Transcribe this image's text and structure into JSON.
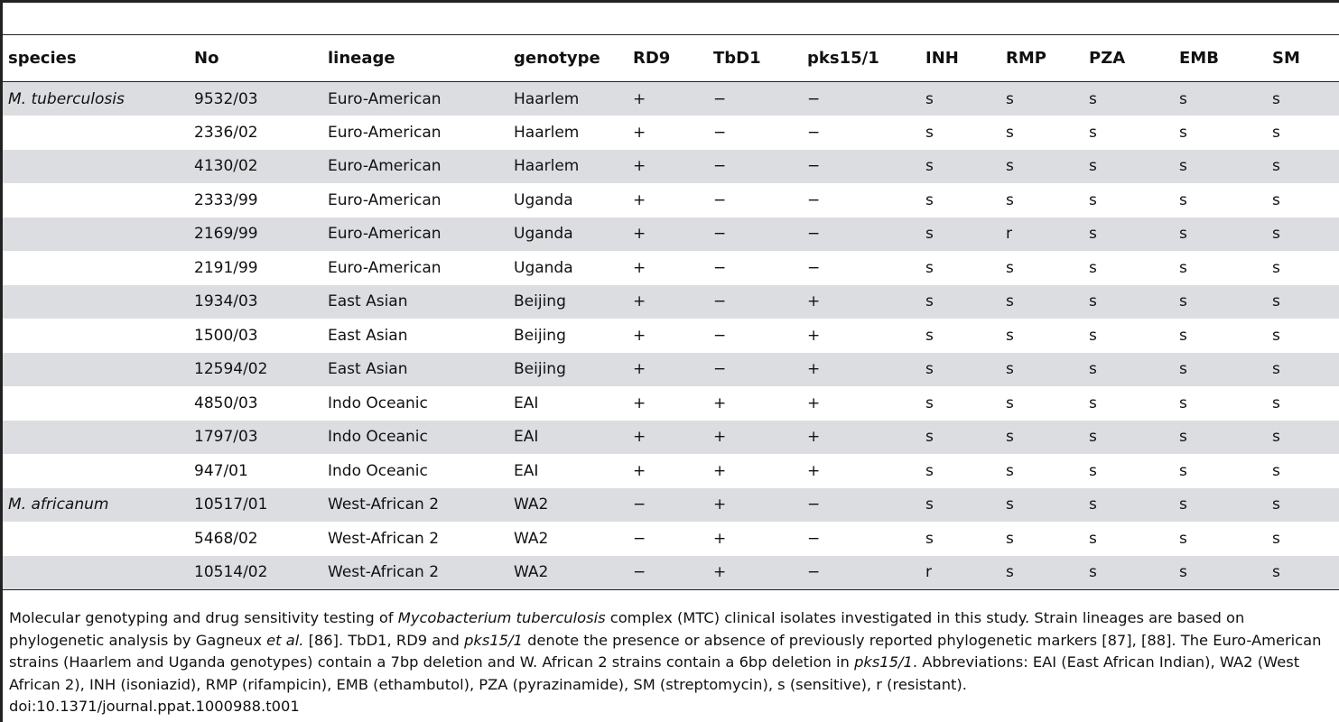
{
  "table": {
    "headers": [
      "species",
      "No",
      "lineage",
      "genotype",
      "RD9",
      "TbD1",
      "pks15/1",
      "INH",
      "RMP",
      "PZA",
      "EMB",
      "SM"
    ],
    "rows": [
      [
        "M. tuberculosis",
        "9532/03",
        "Euro-American",
        "Haarlem",
        "+",
        "−",
        "−",
        "s",
        "s",
        "s",
        "s",
        "s"
      ],
      [
        "",
        "2336/02",
        "Euro-American",
        "Haarlem",
        "+",
        "−",
        "−",
        "s",
        "s",
        "s",
        "s",
        "s"
      ],
      [
        "",
        "4130/02",
        "Euro-American",
        "Haarlem",
        "+",
        "−",
        "−",
        "s",
        "s",
        "s",
        "s",
        "s"
      ],
      [
        "",
        "2333/99",
        "Euro-American",
        "Uganda",
        "+",
        "−",
        "−",
        "s",
        "s",
        "s",
        "s",
        "s"
      ],
      [
        "",
        "2169/99",
        "Euro-American",
        "Uganda",
        "+",
        "−",
        "−",
        "s",
        "r",
        "s",
        "s",
        "s"
      ],
      [
        "",
        "2191/99",
        "Euro-American",
        "Uganda",
        "+",
        "−",
        "−",
        "s",
        "s",
        "s",
        "s",
        "s"
      ],
      [
        "",
        "1934/03",
        "East Asian",
        "Beijing",
        "+",
        "−",
        "+",
        "s",
        "s",
        "s",
        "s",
        "s"
      ],
      [
        "",
        "1500/03",
        "East Asian",
        "Beijing",
        "+",
        "−",
        "+",
        "s",
        "s",
        "s",
        "s",
        "s"
      ],
      [
        "",
        "12594/02",
        "East Asian",
        "Beijing",
        "+",
        "−",
        "+",
        "s",
        "s",
        "s",
        "s",
        "s"
      ],
      [
        "",
        "4850/03",
        "Indo Oceanic",
        "EAI",
        "+",
        "+",
        "+",
        "s",
        "s",
        "s",
        "s",
        "s"
      ],
      [
        "",
        "1797/03",
        "Indo Oceanic",
        "EAI",
        "+",
        "+",
        "+",
        "s",
        "s",
        "s",
        "s",
        "s"
      ],
      [
        "",
        "947/01",
        "Indo Oceanic",
        "EAI",
        "+",
        "+",
        "+",
        "s",
        "s",
        "s",
        "s",
        "s"
      ],
      [
        "M. africanum",
        "10517/01",
        "West-African 2",
        "WA2",
        "−",
        "+",
        "−",
        "s",
        "s",
        "s",
        "s",
        "s"
      ],
      [
        "",
        "5468/02",
        "West-African 2",
        "WA2",
        "−",
        "+",
        "−",
        "s",
        "s",
        "s",
        "s",
        "s"
      ],
      [
        "",
        "10514/02",
        "West-African 2",
        "WA2",
        "−",
        "+",
        "−",
        "r",
        "s",
        "s",
        "s",
        "s"
      ]
    ]
  },
  "caption": {
    "p1": "Molecular genotyping and drug sensitivity testing of ",
    "i1": "Mycobacterium tuberculosis",
    "p2": " complex (MTC) clinical isolates investigated in this study. Strain lineages are based on phylogenetic analysis by Gagneux ",
    "i2": "et al.",
    "p3": " [86]. TbD1, RD9 and ",
    "i3": "pks15/1",
    "p4": " denote the presence or absence of previously reported phylogenetic markers [87], [88]. The Euro-American strains (Haarlem and Uganda genotypes) contain a 7bp deletion and W. African 2 strains contain a 6bp deletion in ",
    "i4": "pks15/1",
    "p5": ". Abbreviations: EAI (East African Indian), WA2 (West African 2), INH (isoniazid), RMP (rifampicin), EMB (ethambutol), PZA (pyrazinamide), SM (streptomycin), s (sensitive), r (resistant).",
    "doi": "doi:10.1371/journal.ppat.1000988.t001"
  }
}
